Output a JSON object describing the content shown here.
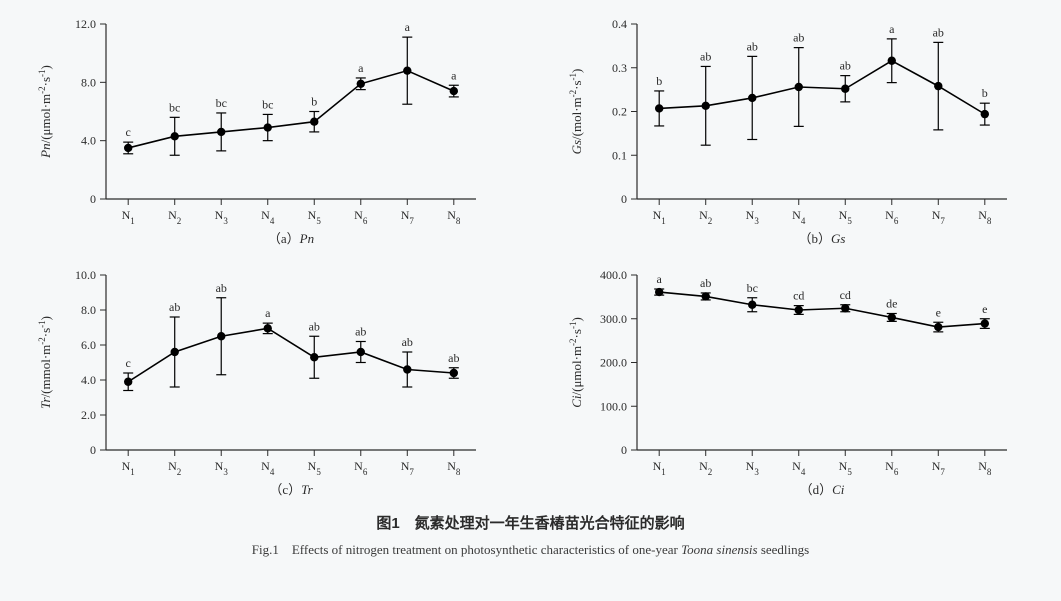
{
  "figure": {
    "background_color": "#f6f8f9",
    "axis_color": "#2b2b2b",
    "text_color": "#2b2b2b",
    "marker_color": "#000000",
    "line_color": "#000000",
    "line_width": 1.6,
    "marker_radius": 4.2,
    "errorbar_cap": 5,
    "tick_len": 6,
    "label_fontsize": 12,
    "sig_fontsize": 12,
    "ylabel_fontsize": 13,
    "sublabel_fontsize": 13
  },
  "categories": [
    "N1",
    "N2",
    "N3",
    "N4",
    "N5",
    "N6",
    "N7",
    "N8"
  ],
  "category_labels": [
    {
      "base": "N",
      "sub": "1"
    },
    {
      "base": "N",
      "sub": "2"
    },
    {
      "base": "N",
      "sub": "3"
    },
    {
      "base": "N",
      "sub": "4"
    },
    {
      "base": "N",
      "sub": "5"
    },
    {
      "base": "N",
      "sub": "6"
    },
    {
      "base": "N",
      "sub": "7"
    },
    {
      "base": "N",
      "sub": "8"
    }
  ],
  "panels": [
    {
      "id": "Pn",
      "sublabel_prefix": "（a）",
      "sublabel_var": "Pn",
      "ylabel_var": "Pn",
      "ylabel_unit_segments": [
        "/(μmol·m",
        "-2",
        "·s",
        "-1",
        ")"
      ],
      "ylim": [
        0,
        12.0
      ],
      "yticks": [
        0,
        4.0,
        8.0,
        12.0
      ],
      "ytick_labels": [
        "0",
        "4.0",
        "8.0",
        "12.0"
      ],
      "values": [
        3.5,
        4.3,
        4.6,
        4.9,
        5.3,
        7.9,
        8.8,
        7.4
      ],
      "err_low": [
        0.4,
        1.3,
        1.3,
        0.9,
        0.7,
        0.4,
        2.3,
        0.4
      ],
      "err_high": [
        0.4,
        1.3,
        1.3,
        0.9,
        0.7,
        0.4,
        2.3,
        0.4
      ],
      "sig": [
        "c",
        "bc",
        "bc",
        "bc",
        "b",
        "a",
        "a",
        "a"
      ]
    },
    {
      "id": "Gs",
      "sublabel_prefix": "（b）",
      "sublabel_var": "Gs",
      "ylabel_var": "Gs",
      "ylabel_unit_segments": [
        "/(mol·m",
        "-2",
        "·s",
        "-1",
        ")"
      ],
      "ylim": [
        0,
        0.4
      ],
      "yticks": [
        0,
        0.1,
        0.2,
        0.3,
        0.4
      ],
      "ytick_labels": [
        "0",
        "0.1",
        "0.2",
        "0.3",
        "0.4"
      ],
      "values": [
        0.207,
        0.213,
        0.231,
        0.256,
        0.252,
        0.316,
        0.258,
        0.194
      ],
      "err_low": [
        0.04,
        0.09,
        0.095,
        0.09,
        0.03,
        0.05,
        0.1,
        0.025
      ],
      "err_high": [
        0.04,
        0.09,
        0.095,
        0.09,
        0.03,
        0.05,
        0.1,
        0.025
      ],
      "sig": [
        "b",
        "ab",
        "ab",
        "ab",
        "ab",
        "a",
        "ab",
        "b"
      ]
    },
    {
      "id": "Tr",
      "sublabel_prefix": "（c）",
      "sublabel_var": "Tr",
      "ylabel_var": "Tr",
      "ylabel_unit_segments": [
        "/(mmol·m",
        "-2",
        "·s",
        "-1",
        ")"
      ],
      "ylim": [
        0,
        10.0
      ],
      "yticks": [
        0,
        2.0,
        4.0,
        6.0,
        8.0,
        10.0
      ],
      "ytick_labels": [
        "0",
        "2.0",
        "4.0",
        "6.0",
        "8.0",
        "10.0"
      ],
      "values": [
        3.9,
        5.6,
        6.5,
        6.95,
        5.3,
        5.6,
        4.6,
        4.4
      ],
      "err_low": [
        0.5,
        2.0,
        2.2,
        0.3,
        1.2,
        0.6,
        1.0,
        0.3
      ],
      "err_high": [
        0.5,
        2.0,
        2.2,
        0.3,
        1.2,
        0.6,
        1.0,
        0.3
      ],
      "sig": [
        "c",
        "ab",
        "ab",
        "a",
        "ab",
        "ab",
        "ab",
        "ab"
      ]
    },
    {
      "id": "Ci",
      "sublabel_prefix": "（d）",
      "sublabel_var": "Ci",
      "ylabel_var": "Ci",
      "ylabel_unit_segments": [
        "/(μmol·m",
        "-2",
        "·s",
        "-1",
        ")"
      ],
      "ylim": [
        0,
        400.0
      ],
      "yticks": [
        0,
        100.0,
        200.0,
        300.0,
        400.0
      ],
      "ytick_labels": [
        "0",
        "100.0",
        "200.0",
        "300.0",
        "400.0"
      ],
      "values": [
        361,
        351,
        332,
        320,
        324,
        303,
        281,
        289
      ],
      "err_low": [
        7,
        8,
        16,
        10,
        8,
        9,
        11,
        11
      ],
      "err_high": [
        7,
        8,
        16,
        10,
        8,
        9,
        11,
        11
      ],
      "sig": [
        "a",
        "ab",
        "bc",
        "cd",
        "cd",
        "de",
        "e",
        "e"
      ]
    }
  ],
  "caption_zh": "图1　氮素处理对一年生香椿苗光合特征的影响",
  "caption_en_prefix": "Fig.1　Effects of nitrogen treatment on photosynthetic characteristics of one-year ",
  "caption_en_ital": "Toona sinensis",
  "caption_en_suffix": " seedlings"
}
